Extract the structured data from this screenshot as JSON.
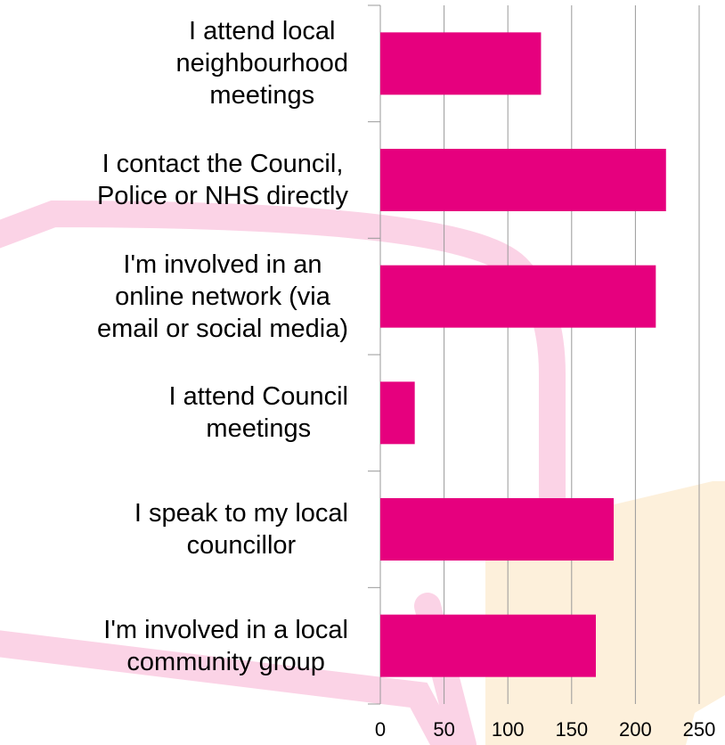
{
  "chart_data": {
    "type": "barh",
    "categories": [
      "I attend local neighbourhood meetings",
      "I contact the Council, Police or NHS directly",
      "I'm involved in an online network (via email or social media)",
      "I attend Council meetings",
      "I speak to my local councillor",
      "I'm involved in a local community group"
    ],
    "values": [
      126,
      224,
      216,
      27,
      183,
      169
    ],
    "color": "#e6007e",
    "xlim": [
      0,
      250
    ],
    "xticks": [
      0,
      50,
      100,
      150,
      200,
      250
    ],
    "grid": true
  }
}
